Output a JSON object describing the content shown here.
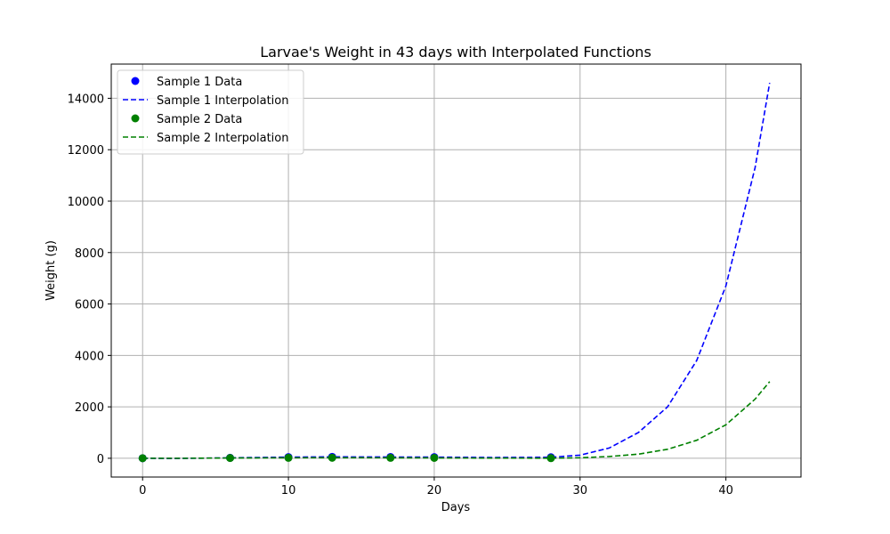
{
  "chart_data": {
    "type": "line",
    "title": "Larvae's Weight in 43 days with Interpolated Functions",
    "xlabel": "Days",
    "ylabel": "Weight (g)",
    "xlim": [
      -2.15,
      45.15
    ],
    "ylim": [
      -730,
      15330
    ],
    "xticks": [
      0,
      10,
      20,
      30,
      40
    ],
    "yticks": [
      0,
      2000,
      4000,
      6000,
      8000,
      10000,
      12000,
      14000
    ],
    "grid": true,
    "legend_position": "top-left",
    "series": [
      {
        "name": "Sample 1 Data",
        "kind": "scatter",
        "color": "#0000ff",
        "x": [
          0,
          6,
          10,
          13,
          17,
          20,
          28
        ],
        "y": [
          2,
          18,
          45,
          55,
          50,
          45,
          40
        ]
      },
      {
        "name": "Sample 1 Interpolation",
        "kind": "line",
        "style": "dashed",
        "color": "#0000ff",
        "x": [
          0,
          2,
          4,
          6,
          8,
          10,
          13,
          17,
          20,
          24,
          28,
          30,
          32,
          34,
          36,
          38,
          40,
          42,
          43
        ],
        "y": [
          2,
          -10,
          5,
          18,
          32,
          45,
          55,
          50,
          45,
          30,
          40,
          120,
          400,
          1000,
          2000,
          3800,
          6700,
          11300,
          14600
        ]
      },
      {
        "name": "Sample 2 Data",
        "kind": "scatter",
        "color": "#008000",
        "x": [
          0,
          6,
          10,
          13,
          17,
          20,
          28
        ],
        "y": [
          1,
          10,
          18,
          20,
          18,
          15,
          5
        ]
      },
      {
        "name": "Sample 2 Interpolation",
        "kind": "line",
        "style": "dashed",
        "color": "#008000",
        "x": [
          0,
          3,
          6,
          10,
          13,
          17,
          20,
          24,
          28,
          30,
          32,
          34,
          36,
          38,
          40,
          42,
          43
        ],
        "y": [
          1,
          2,
          10,
          18,
          20,
          18,
          15,
          8,
          5,
          20,
          70,
          160,
          350,
          700,
          1300,
          2300,
          2980
        ]
      }
    ]
  }
}
